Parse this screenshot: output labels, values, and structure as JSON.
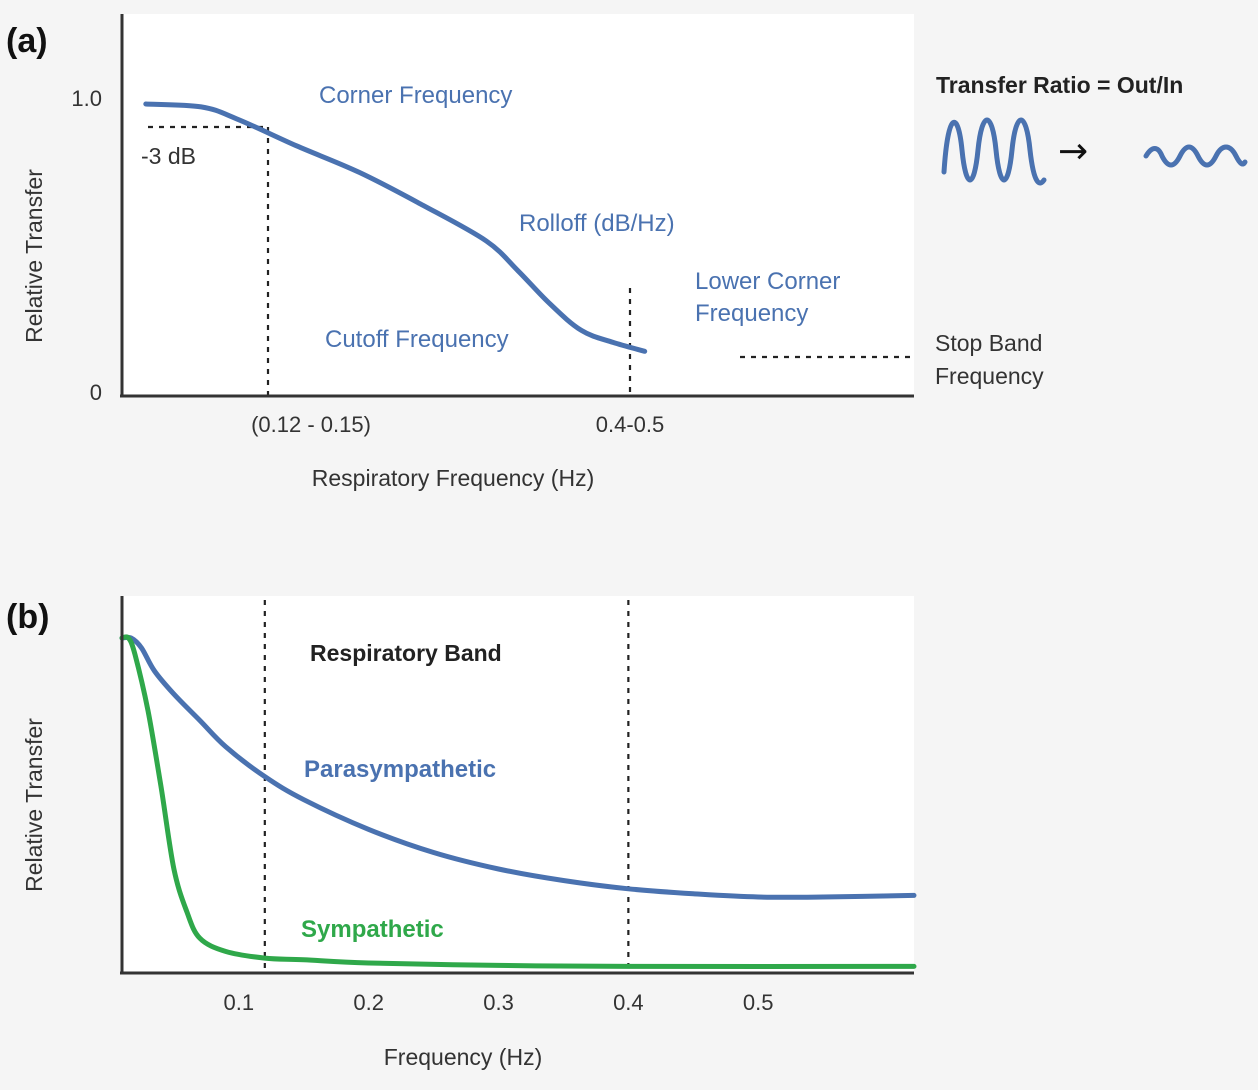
{
  "colors": {
    "blue": "#4a72b0",
    "green": "#2fa84a",
    "axis": "#333333"
  },
  "chart_data": [
    {
      "panel": "(a)",
      "type": "line",
      "ylabel": "Relative Transfer",
      "xlabel": "Respiratory Frequency (Hz)",
      "y_ticks": [
        "1.0",
        "0"
      ],
      "x_ticks": [
        "(0.12 - 0.15)",
        "0.4-0.5"
      ],
      "annotations": {
        "db3": "-3 dB",
        "corner": "Corner Frequency",
        "rolloff": "Rolloff (dB/Hz)",
        "cutoff": "Cutoff Frequency",
        "lower_corner_1": "Lower Corner",
        "lower_corner_2": "Frequency",
        "stop_band_1": "Stop Band",
        "stop_band_2": "Frequency"
      },
      "inset": {
        "title": "Transfer Ratio = Out/In",
        "arrow": "→"
      },
      "series": [
        {
          "x_fraction": [
            0.03,
            0.1,
            0.145,
            0.22,
            0.3,
            0.38,
            0.46,
            0.5,
            0.54,
            0.58,
            0.62,
            0.66
          ],
          "values": [
            0.98,
            0.97,
            0.93,
            0.84,
            0.75,
            0.64,
            0.52,
            0.42,
            0.31,
            0.22,
            0.18,
            0.15
          ]
        }
      ],
      "reference_lines": {
        "db3_level": 0.9,
        "corner_x_fraction": 0.185,
        "lower_x_fraction": 0.645,
        "stop_level": 0.15
      },
      "ylim": [
        0,
        1.0
      ]
    },
    {
      "panel": "(b)",
      "type": "line",
      "ylabel": "Relative Transfer",
      "xlabel": "Frequency (Hz)",
      "x_ticks": [
        "0.1",
        "0.2",
        "0.3",
        "0.4",
        "0.5"
      ],
      "band_label": "Respiratory Band",
      "band": [
        0.12,
        0.4
      ],
      "xlim": [
        0.01,
        0.62
      ],
      "ylim": [
        0,
        1.0
      ],
      "series": [
        {
          "name": "Parasympathetic",
          "x": [
            0.01,
            0.017,
            0.025,
            0.035,
            0.05,
            0.07,
            0.09,
            0.12,
            0.15,
            0.2,
            0.25,
            0.3,
            0.35,
            0.4,
            0.45,
            0.5,
            0.55,
            0.62
          ],
          "values": [
            1.0,
            1.0,
            0.97,
            0.9,
            0.83,
            0.75,
            0.67,
            0.58,
            0.51,
            0.42,
            0.35,
            0.3,
            0.265,
            0.24,
            0.225,
            0.215,
            0.215,
            0.22
          ]
        },
        {
          "name": "Sympathetic",
          "x": [
            0.01,
            0.015,
            0.02,
            0.03,
            0.04,
            0.05,
            0.06,
            0.07,
            0.09,
            0.12,
            0.15,
            0.2,
            0.3,
            0.4,
            0.62
          ],
          "values": [
            1.0,
            1.0,
            0.95,
            0.78,
            0.55,
            0.3,
            0.17,
            0.09,
            0.05,
            0.03,
            0.025,
            0.015,
            0.008,
            0.005,
            0.005
          ]
        }
      ]
    }
  ]
}
